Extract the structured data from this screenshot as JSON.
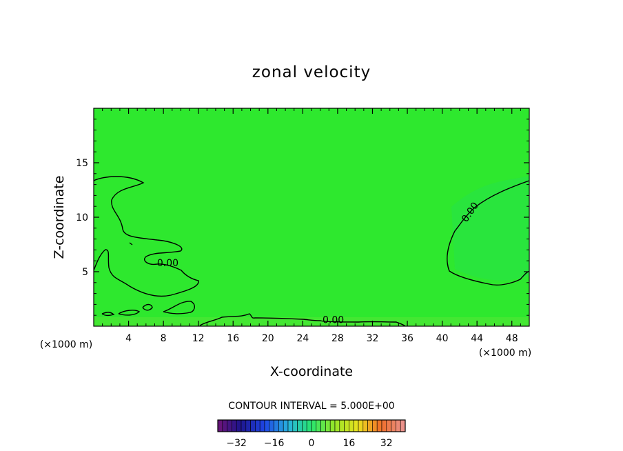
{
  "chart_data": {
    "type": "heatmap",
    "title": "zonal velocity",
    "xlabel": "X-coordinate",
    "ylabel": "Z-coordinate",
    "x_unit_left": "(×1000 m)",
    "x_unit_right": "(×1000 m)",
    "xlim": [
      0,
      50
    ],
    "ylim": [
      0,
      20
    ],
    "x_ticks": [
      4,
      8,
      12,
      16,
      20,
      24,
      28,
      32,
      36,
      40,
      44,
      48
    ],
    "y_ticks": [
      5,
      10,
      15
    ],
    "background_color": "#2ee82e",
    "contour_label": "0.00",
    "contour_annotations": [
      {
        "text": "0.00",
        "x": 8.5,
        "z": 5.5
      },
      {
        "text": "0.00",
        "x": 27.5,
        "z": 0.3
      },
      {
        "text": "0.00",
        "x": 43.5,
        "z": 10.3
      }
    ],
    "contour_interval_text": "CONTOUR INTERVAL = 5.000E+00",
    "contour_interval": 5.0,
    "colorbar": {
      "min": -40,
      "max": 40,
      "ticks": [
        "-32",
        "-16",
        "0",
        "16",
        "32"
      ]
    }
  }
}
